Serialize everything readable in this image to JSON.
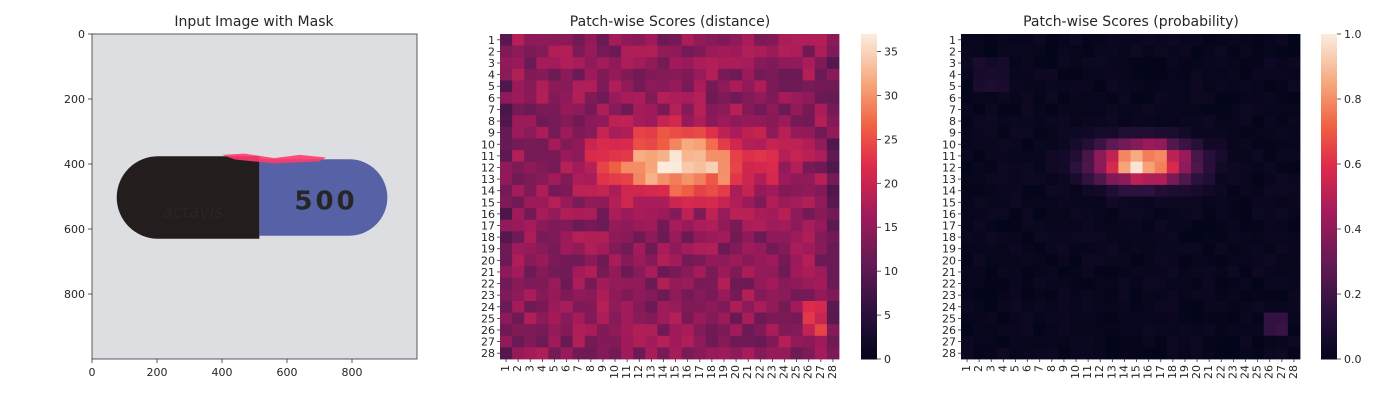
{
  "chart_data": [
    {
      "type": "image",
      "title": "Input Image with Mask",
      "xlim": [
        0,
        1000
      ],
      "ylim": [
        1000,
        0
      ],
      "xticks": [
        0,
        200,
        400,
        600,
        800
      ],
      "yticks": [
        0,
        200,
        400,
        600,
        800
      ],
      "pill_text": "500",
      "brand_text": "actavis",
      "colors": {
        "background": "#dcdee2",
        "dark_half": "#241d1e",
        "blue_half": "#5762a6",
        "mask": "#ff3c6e"
      }
    },
    {
      "type": "heatmap",
      "title": "Patch-wise Scores (distance)",
      "rows": 28,
      "cols": 28,
      "xticks": [
        "1",
        "2",
        "3",
        "4",
        "5",
        "6",
        "7",
        "8",
        "9",
        "10",
        "11",
        "12",
        "13",
        "14",
        "15",
        "16",
        "17",
        "18",
        "19",
        "20",
        "21",
        "22",
        "23",
        "24",
        "25",
        "26",
        "27",
        "28"
      ],
      "yticks": [
        "1",
        "2",
        "3",
        "4",
        "5",
        "6",
        "7",
        "8",
        "9",
        "10",
        "11",
        "12",
        "13",
        "14",
        "15",
        "16",
        "17",
        "18",
        "19",
        "20",
        "21",
        "22",
        "23",
        "24",
        "25",
        "26",
        "27",
        "28"
      ],
      "value_range": [
        0,
        37
      ],
      "colorbar_ticks": [
        "0",
        "5",
        "10",
        "15",
        "20",
        "25",
        "30",
        "35"
      ],
      "baseline": 15,
      "blob": {
        "center_row": 11.6,
        "center_col": 15.5,
        "sigma_row": 1.9,
        "sigma_col": 4.2,
        "peak": 22
      },
      "colormap": "rocket"
    },
    {
      "type": "heatmap",
      "title": "Patch-wise Scores (probability)",
      "rows": 28,
      "cols": 28,
      "xticks": [
        "1",
        "2",
        "3",
        "4",
        "5",
        "6",
        "7",
        "8",
        "9",
        "10",
        "11",
        "12",
        "13",
        "14",
        "15",
        "16",
        "17",
        "18",
        "19",
        "20",
        "21",
        "22",
        "23",
        "24",
        "25",
        "26",
        "27",
        "28"
      ],
      "yticks": [
        "1",
        "2",
        "3",
        "4",
        "5",
        "6",
        "7",
        "8",
        "9",
        "10",
        "11",
        "12",
        "13",
        "14",
        "15",
        "16",
        "17",
        "18",
        "19",
        "20",
        "21",
        "22",
        "23",
        "24",
        "25",
        "26",
        "27",
        "28"
      ],
      "value_range": [
        0,
        1
      ],
      "colorbar_ticks": [
        "0.0",
        "0.2",
        "0.4",
        "0.6",
        "0.8",
        "1.0"
      ],
      "blob": {
        "center_row": 11.6,
        "center_col": 15.5,
        "sigma_row": 1.2,
        "sigma_col": 2.7,
        "peak": 1.0
      },
      "colormap": "rocket"
    }
  ]
}
